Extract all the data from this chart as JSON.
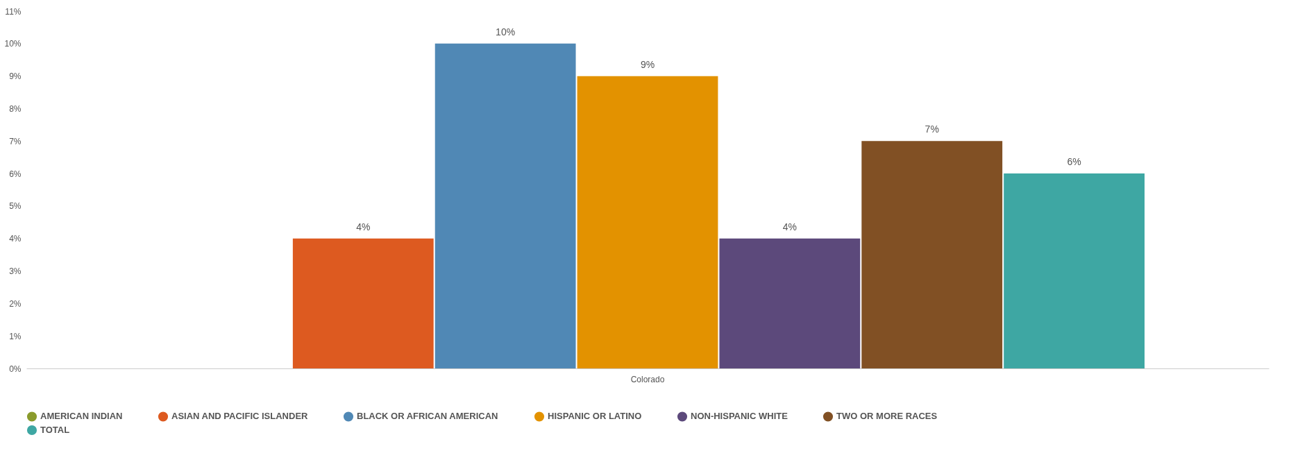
{
  "chart_data": {
    "type": "bar",
    "categories": [
      "Colorado"
    ],
    "series": [
      {
        "name": "AMERICAN INDIAN",
        "color": "#8a9b2c",
        "values": [
          null
        ],
        "value_labels": [
          null
        ]
      },
      {
        "name": "ASIAN AND PACIFIC ISLANDER",
        "color": "#dd5a20",
        "values": [
          4
        ],
        "value_labels": [
          "4%"
        ]
      },
      {
        "name": "BLACK OR AFRICAN AMERICAN",
        "color": "#5088b5",
        "values": [
          10
        ],
        "value_labels": [
          "10%"
        ]
      },
      {
        "name": "HISPANIC OR LATINO",
        "color": "#e39200",
        "values": [
          9
        ],
        "value_labels": [
          "9%"
        ]
      },
      {
        "name": "NON-HISPANIC WHITE",
        "color": "#5c497b",
        "values": [
          4
        ],
        "value_labels": [
          "4%"
        ]
      },
      {
        "name": "TWO OR MORE RACES",
        "color": "#815024",
        "values": [
          7
        ],
        "value_labels": [
          "7%"
        ]
      },
      {
        "name": "TOTAL",
        "color": "#3ea7a3",
        "values": [
          6
        ],
        "value_labels": [
          "6%"
        ]
      }
    ],
    "ylim": [
      0,
      11
    ],
    "yticks": [
      {
        "value": 0,
        "label": "0%"
      },
      {
        "value": 1,
        "label": "1%"
      },
      {
        "value": 2,
        "label": "2%"
      },
      {
        "value": 3,
        "label": "3%"
      },
      {
        "value": 4,
        "label": "4%"
      },
      {
        "value": 5,
        "label": "5%"
      },
      {
        "value": 6,
        "label": "6%"
      },
      {
        "value": 7,
        "label": "7%"
      },
      {
        "value": 8,
        "label": "8%"
      },
      {
        "value": 9,
        "label": "9%"
      },
      {
        "value": 10,
        "label": "10%"
      },
      {
        "value": 11,
        "label": "11%"
      }
    ],
    "grid": false,
    "legend": "bottom"
  }
}
